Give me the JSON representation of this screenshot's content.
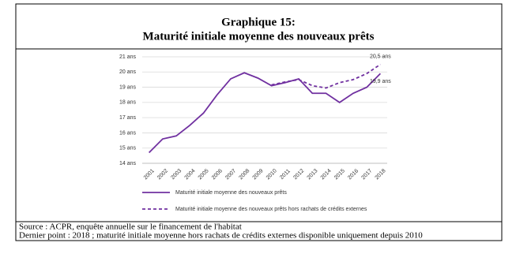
{
  "header": {
    "title": "Graphique 15:",
    "subtitle": "Maturité initiale moyenne des nouveaux prêts"
  },
  "chart_data": {
    "type": "line",
    "categories": [
      "2001",
      "2002",
      "2003",
      "2004",
      "2005",
      "2006",
      "2007",
      "2008",
      "2009",
      "2010",
      "2011",
      "2012",
      "2013",
      "2014",
      "2015",
      "2016",
      "2017",
      "2018"
    ],
    "series": [
      {
        "name": "Maturité initiale moyenne des nouveaux prêts",
        "color": "#7030a0",
        "dash": false,
        "values": [
          14.7,
          15.6,
          15.8,
          16.5,
          17.3,
          18.5,
          19.55,
          19.95,
          19.6,
          19.1,
          19.3,
          19.55,
          18.6,
          18.6,
          18.0,
          18.6,
          19.0,
          19.9
        ],
        "value_labels": [
          null,
          null,
          null,
          null,
          null,
          null,
          null,
          null,
          null,
          null,
          null,
          null,
          null,
          null,
          null,
          null,
          null,
          "19,9 ans"
        ]
      },
      {
        "name": "Maturité initiale moyenne des nouveaux prêts hors rachats de crédits externes",
        "color": "#7030a0",
        "dash": true,
        "values": [
          null,
          null,
          null,
          null,
          null,
          null,
          null,
          null,
          null,
          19.15,
          19.35,
          19.5,
          19.1,
          18.95,
          19.3,
          19.5,
          19.9,
          20.5
        ],
        "value_labels": [
          null,
          null,
          null,
          null,
          null,
          null,
          null,
          null,
          null,
          null,
          null,
          null,
          null,
          null,
          null,
          null,
          null,
          "20,5 ans"
        ]
      }
    ],
    "ylim": [
      14,
      21
    ],
    "yticks": [
      {
        "value": 14,
        "label": "14 ans"
      },
      {
        "value": 15,
        "label": "15 ans"
      },
      {
        "value": 16,
        "label": "16 ans"
      },
      {
        "value": 17,
        "label": "17 ans"
      },
      {
        "value": 18,
        "label": "18 ans"
      },
      {
        "value": 19,
        "label": "19 ans"
      },
      {
        "value": 20,
        "label": "20 ans"
      },
      {
        "value": 21,
        "label": "21 ans"
      }
    ],
    "grid": true
  },
  "footer": {
    "source": "Source : ACPR, enquête annuelle sur le financement de l'habitat",
    "note": "Dernier point : 2018 ; maturité initiale moyenne hors rachats de crédits externes disponible uniquement depuis 2010"
  }
}
